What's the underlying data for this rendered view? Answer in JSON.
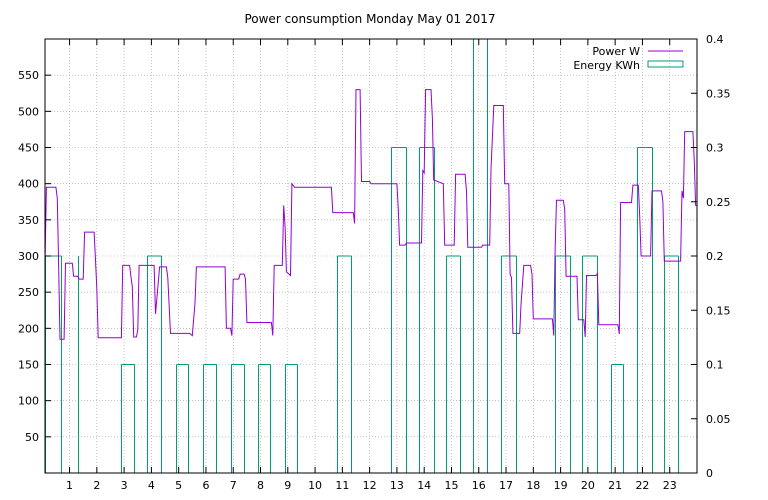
{
  "chart_data": {
    "type": "line",
    "title": "Power consumption Monday May 01 2017",
    "xlabel": "",
    "ylabel": "",
    "grid": true,
    "legend_position": "top-right",
    "x_ticks": [
      "1",
      "2",
      "3",
      "4",
      "5",
      "6",
      "7",
      "8",
      "9",
      "10",
      "11",
      "12",
      "13",
      "14",
      "15",
      "16",
      "17",
      "18",
      "19",
      "20",
      "21",
      "22",
      "23"
    ],
    "xlim": [
      0.1,
      24
    ],
    "y_left": {
      "ylim": [
        0,
        600
      ],
      "ticks": [
        "50",
        "100",
        "150",
        "200",
        "250",
        "300",
        "350",
        "400",
        "450",
        "500",
        "550"
      ]
    },
    "y_right": {
      "ylim": [
        0,
        0.4
      ],
      "ticks": [
        "0",
        "0.05",
        "0.1",
        "0.15",
        "0.2",
        "0.25",
        "0.3",
        "0.35",
        "0.4"
      ]
    },
    "series": [
      {
        "name": "Power W",
        "axis": "left",
        "color": "#9400d3",
        "style": "step-line",
        "points": [
          [
            0.1,
            290
          ],
          [
            0.15,
            395
          ],
          [
            0.5,
            395
          ],
          [
            0.55,
            380
          ],
          [
            0.6,
            290
          ],
          [
            0.65,
            185
          ],
          [
            0.8,
            185
          ],
          [
            0.85,
            290
          ],
          [
            1.1,
            290
          ],
          [
            1.15,
            272
          ],
          [
            1.3,
            272
          ],
          [
            1.35,
            268
          ],
          [
            1.5,
            268
          ],
          [
            1.55,
            333
          ],
          [
            1.9,
            333
          ],
          [
            1.95,
            295
          ],
          [
            2.0,
            255
          ],
          [
            2.05,
            187
          ],
          [
            2.9,
            187
          ],
          [
            2.95,
            287
          ],
          [
            3.2,
            287
          ],
          [
            3.25,
            272
          ],
          [
            3.3,
            258
          ],
          [
            3.35,
            188
          ],
          [
            3.45,
            188
          ],
          [
            3.5,
            198
          ],
          [
            3.55,
            287
          ],
          [
            4.1,
            287
          ],
          [
            4.15,
            220
          ],
          [
            4.2,
            240
          ],
          [
            4.3,
            285
          ],
          [
            4.55,
            285
          ],
          [
            4.6,
            270
          ],
          [
            4.7,
            193
          ],
          [
            5.4,
            193
          ],
          [
            5.5,
            190
          ],
          [
            5.6,
            235
          ],
          [
            5.65,
            285
          ],
          [
            6.7,
            285
          ],
          [
            6.75,
            200
          ],
          [
            6.9,
            200
          ],
          [
            6.95,
            190
          ],
          [
            7.0,
            268
          ],
          [
            7.2,
            268
          ],
          [
            7.25,
            275
          ],
          [
            7.4,
            275
          ],
          [
            7.45,
            268
          ],
          [
            7.5,
            208
          ],
          [
            8.4,
            208
          ],
          [
            8.45,
            190
          ],
          [
            8.5,
            287
          ],
          [
            8.8,
            287
          ],
          [
            8.85,
            370
          ],
          [
            8.9,
            340
          ],
          [
            8.95,
            278
          ],
          [
            9.1,
            273
          ],
          [
            9.15,
            400
          ],
          [
            9.25,
            395
          ],
          [
            10.6,
            395
          ],
          [
            10.65,
            360
          ],
          [
            11.4,
            360
          ],
          [
            11.45,
            345
          ],
          [
            11.5,
            530
          ],
          [
            11.65,
            530
          ],
          [
            11.7,
            403
          ],
          [
            12.0,
            403
          ],
          [
            12.05,
            400
          ],
          [
            13.0,
            400
          ],
          [
            13.05,
            365
          ],
          [
            13.1,
            315
          ],
          [
            13.3,
            315
          ],
          [
            13.35,
            318
          ],
          [
            13.9,
            318
          ],
          [
            13.95,
            418
          ],
          [
            14.0,
            415
          ],
          [
            14.05,
            530
          ],
          [
            14.25,
            530
          ],
          [
            14.3,
            490
          ],
          [
            14.35,
            405
          ],
          [
            14.7,
            400
          ],
          [
            14.75,
            315
          ],
          [
            15.1,
            315
          ],
          [
            15.15,
            413
          ],
          [
            15.5,
            413
          ],
          [
            15.55,
            390
          ],
          [
            15.6,
            312
          ],
          [
            16.1,
            312
          ],
          [
            16.15,
            315
          ],
          [
            16.4,
            315
          ],
          [
            16.45,
            420
          ],
          [
            16.55,
            508
          ],
          [
            16.9,
            508
          ],
          [
            16.95,
            400
          ],
          [
            17.1,
            400
          ],
          [
            17.15,
            275
          ],
          [
            17.2,
            270
          ],
          [
            17.25,
            193
          ],
          [
            17.5,
            193
          ],
          [
            17.55,
            233
          ],
          [
            17.65,
            287
          ],
          [
            17.9,
            287
          ],
          [
            17.95,
            275
          ],
          [
            18.0,
            213
          ],
          [
            18.7,
            213
          ],
          [
            18.75,
            190
          ],
          [
            18.8,
            308
          ],
          [
            18.85,
            377
          ],
          [
            19.1,
            377
          ],
          [
            19.15,
            365
          ],
          [
            19.2,
            272
          ],
          [
            19.6,
            272
          ],
          [
            19.65,
            212
          ],
          [
            19.85,
            212
          ],
          [
            19.9,
            188
          ],
          [
            19.95,
            273
          ],
          [
            20.3,
            273
          ],
          [
            20.35,
            276
          ],
          [
            20.4,
            205
          ],
          [
            21.1,
            205
          ],
          [
            21.15,
            192
          ],
          [
            21.2,
            374
          ],
          [
            21.6,
            374
          ],
          [
            21.65,
            398
          ],
          [
            21.85,
            398
          ],
          [
            21.9,
            355
          ],
          [
            21.95,
            300
          ],
          [
            22.3,
            300
          ],
          [
            22.35,
            390
          ],
          [
            22.7,
            390
          ],
          [
            22.75,
            375
          ],
          [
            22.8,
            293
          ],
          [
            23.4,
            293
          ],
          [
            23.45,
            390
          ],
          [
            23.5,
            380
          ],
          [
            23.55,
            472
          ],
          [
            23.85,
            472
          ],
          [
            23.9,
            430
          ],
          [
            23.95,
            370
          ],
          [
            24.0,
            370
          ]
        ]
      },
      {
        "name": "Energy KWh",
        "axis": "right",
        "color": "#009e73",
        "style": "impulse-bars",
        "bars": [
          [
            0.1,
            0.2
          ],
          [
            0.7,
            0.2
          ],
          [
            1.3,
            0.2
          ],
          [
            2.9,
            0.1
          ],
          [
            3.35,
            0.1
          ],
          [
            3.85,
            0.2
          ],
          [
            4.35,
            0.2
          ],
          [
            4.9,
            0.1
          ],
          [
            5.35,
            0.1
          ],
          [
            5.9,
            0.1
          ],
          [
            6.35,
            0.1
          ],
          [
            6.9,
            0.1
          ],
          [
            7.4,
            0.1
          ],
          [
            7.9,
            0.1
          ],
          [
            8.35,
            0.1
          ],
          [
            8.9,
            0.1
          ],
          [
            9.35,
            0.1
          ],
          [
            10.8,
            0.2
          ],
          [
            11.3,
            0.2
          ],
          [
            12.8,
            0.3
          ],
          [
            13.35,
            0.3
          ],
          [
            13.8,
            0.3
          ],
          [
            14.35,
            0.3
          ],
          [
            14.8,
            0.2
          ],
          [
            15.3,
            0.2
          ],
          [
            15.8,
            0.4
          ],
          [
            16.3,
            0.4
          ],
          [
            16.8,
            0.2
          ],
          [
            17.35,
            0.2
          ],
          [
            18.8,
            0.2
          ],
          [
            19.35,
            0.2
          ],
          [
            19.8,
            0.2
          ],
          [
            20.35,
            0.2
          ],
          [
            20.85,
            0.1
          ],
          [
            21.3,
            0.1
          ],
          [
            21.8,
            0.3
          ],
          [
            22.35,
            0.3
          ],
          [
            22.8,
            0.2
          ],
          [
            23.3,
            0.2
          ]
        ]
      }
    ]
  }
}
